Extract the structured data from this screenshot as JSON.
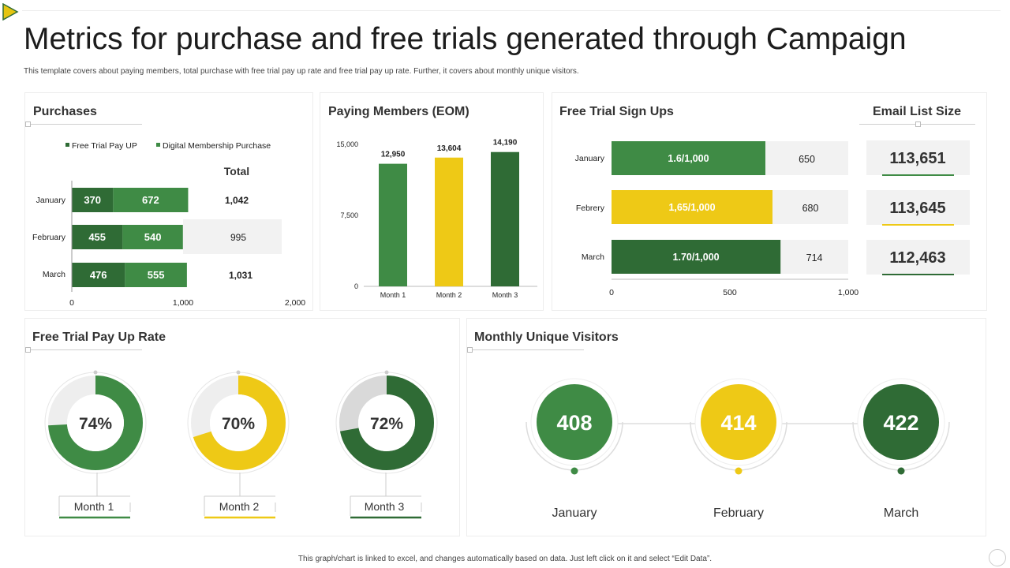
{
  "header": {
    "title": "Metrics for purchase and free trials generated through Campaign",
    "subtitle": "This template covers about paying members, total purchase with free trial pay up rate and free trial pay up rate. Further, it covers about monthly unique visitors."
  },
  "footer": {
    "note": "This graph/chart is linked to excel, and changes automatically based on data. Just left click on it and select “Edit Data”."
  },
  "colors": {
    "dark_green": "#2f6b35",
    "green": "#3f8b45",
    "yellow": "#eec916",
    "light_gray": "#f2f2f2"
  },
  "purchases": {
    "title": "Purchases",
    "total_label": "Total"
  },
  "paying_members": {
    "title": "Paying Members (EOM)"
  },
  "free_trial_signups": {
    "title": "Free Trial  Sign Ups"
  },
  "email_list": {
    "title": "Email List Size",
    "values": [
      "113,651",
      "113,645",
      "112,463"
    ]
  },
  "pay_up_rate": {
    "title": "Free Trial  Pay Up Rate"
  },
  "visitors": {
    "title": "Monthly Unique Visitors"
  },
  "chart_data": [
    {
      "type": "bar",
      "orientation": "horizontal-stacked",
      "title": "Purchases",
      "categories": [
        "January",
        "February",
        "March"
      ],
      "series": [
        {
          "name": "Free Trial Pay UP",
          "values": [
            370,
            455,
            476
          ]
        },
        {
          "name": "Digital Membership Purchase",
          "values": [
            672,
            540,
            555
          ]
        }
      ],
      "totals": [
        "1,042",
        "995",
        "1,031"
      ],
      "xlim": [
        0,
        2000
      ],
      "x_ticks": [
        "0",
        "1,000",
        "2,000"
      ],
      "legend": "top"
    },
    {
      "type": "bar",
      "title": "Paying Members (EOM)",
      "categories": [
        "Month 1",
        "Month 2",
        "Month 3"
      ],
      "values": [
        12950,
        13604,
        14190
      ],
      "value_labels": [
        "12,950",
        "13,604",
        "14,190"
      ],
      "ylim": [
        0,
        15000
      ],
      "y_ticks": [
        "0",
        "7,500",
        "15,000"
      ]
    },
    {
      "type": "bar",
      "orientation": "horizontal",
      "title": "Free Trial  Sign Ups",
      "categories": [
        "January",
        "Febrery",
        "March"
      ],
      "values": [
        650,
        680,
        714
      ],
      "bar_labels": [
        "1.6/1,000",
        "1,65/1,000",
        "1.70/1,000"
      ],
      "value_labels": [
        "650",
        "680",
        "714"
      ],
      "xlim": [
        0,
        1000
      ],
      "x_ticks": [
        "0",
        "500",
        "1,000"
      ]
    },
    {
      "type": "pie",
      "style": "donut",
      "title": "Free Trial  Pay Up Rate",
      "categories": [
        "Month 1",
        "Month 2",
        "Month 3"
      ],
      "values": [
        74,
        70,
        72
      ],
      "value_labels": [
        "74%",
        "70%",
        "72%"
      ]
    },
    {
      "type": "scatter",
      "style": "bubble",
      "title": "Monthly Unique Visitors",
      "categories": [
        "January",
        "February",
        "March"
      ],
      "values": [
        408,
        414,
        422
      ],
      "value_labels": [
        "408",
        "414",
        "422"
      ]
    }
  ]
}
